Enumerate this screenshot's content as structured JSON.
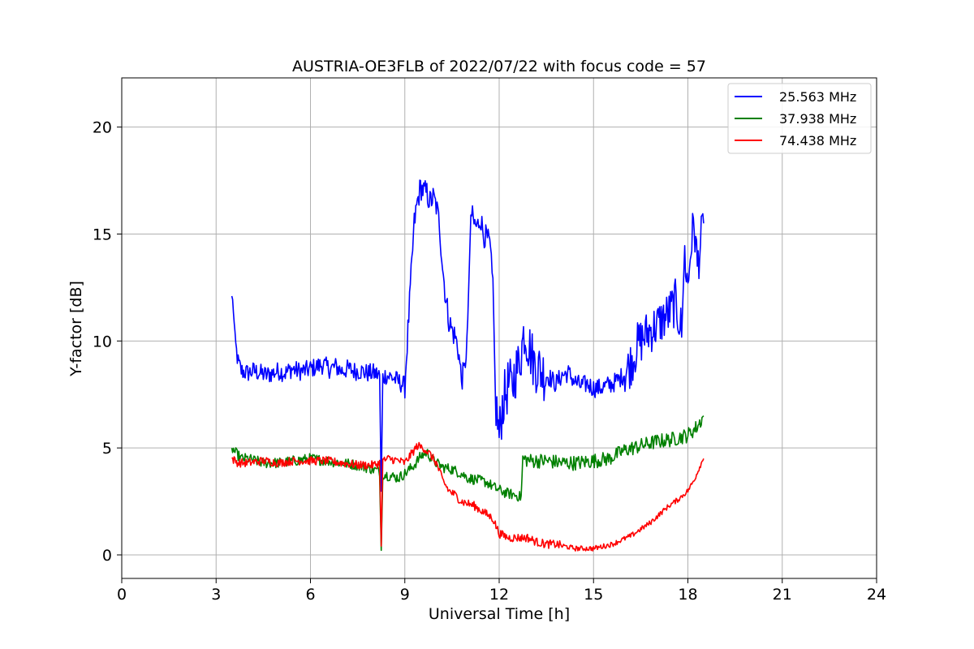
{
  "chart_data": {
    "type": "line",
    "title": "AUSTRIA-OE3FLB of 2022/07/22 with focus code = 57",
    "xlabel": "Universal Time [h]",
    "ylabel": "Y-factor [dB]",
    "xlim": [
      0,
      24
    ],
    "ylim": [
      -1.1,
      22.3
    ],
    "xticks": [
      0,
      3,
      6,
      9,
      12,
      15,
      18,
      21,
      24
    ],
    "yticks": [
      0,
      5,
      10,
      15,
      20
    ],
    "grid": true,
    "legend_position": "top-right",
    "series": [
      {
        "name": "25.563 MHz",
        "color": "#0000ff",
        "x": [
          3.5,
          3.55,
          3.6,
          3.7,
          3.8,
          4.0,
          4.2,
          4.4,
          4.6,
          4.8,
          5.0,
          5.2,
          5.4,
          5.6,
          5.8,
          6.0,
          6.2,
          6.4,
          6.6,
          6.8,
          7.0,
          7.2,
          7.4,
          7.6,
          7.8,
          8.0,
          8.2,
          8.25,
          8.3,
          8.4,
          8.6,
          8.8,
          9.0,
          9.1,
          9.2,
          9.3,
          9.4,
          9.5,
          9.6,
          9.7,
          9.8,
          9.9,
          10.0,
          10.1,
          10.2,
          10.3,
          10.4,
          10.5,
          10.6,
          10.7,
          10.8,
          10.9,
          11.0,
          11.1,
          11.2,
          11.3,
          11.4,
          11.5,
          11.6,
          11.7,
          11.8,
          11.9,
          12.0,
          12.1,
          12.2,
          12.3,
          12.4,
          12.5,
          12.6,
          12.7,
          12.8,
          12.9,
          13.0,
          13.1,
          13.2,
          13.4,
          13.6,
          13.8,
          14.0,
          14.2,
          14.4,
          14.6,
          14.8,
          15.0,
          15.2,
          15.4,
          15.6,
          15.8,
          16.0,
          16.2,
          16.4,
          16.6,
          16.8,
          17.0,
          17.2,
          17.4,
          17.6,
          17.8,
          17.9,
          18.0,
          18.1,
          18.2,
          18.3,
          18.4,
          18.5
        ],
        "y": [
          12.1,
          11.5,
          10.0,
          9.0,
          8.6,
          8.5,
          8.6,
          8.5,
          8.4,
          8.5,
          8.6,
          8.5,
          8.7,
          8.6,
          8.6,
          8.7,
          8.8,
          8.9,
          8.7,
          8.8,
          8.6,
          8.7,
          8.6,
          8.6,
          8.5,
          8.5,
          8.4,
          2.8,
          8.3,
          8.4,
          8.3,
          8.1,
          7.9,
          10.5,
          13.0,
          15.5,
          16.5,
          17.2,
          17.0,
          16.9,
          16.5,
          16.7,
          16.3,
          15.5,
          13.5,
          12.0,
          11.0,
          10.5,
          10.2,
          9.6,
          8.2,
          8.6,
          10.5,
          16.0,
          15.5,
          15.3,
          15.8,
          15.0,
          14.8,
          14.5,
          12.5,
          7.0,
          5.5,
          7.0,
          7.5,
          8.0,
          7.8,
          8.5,
          8.8,
          9.5,
          10.5,
          10.0,
          9.5,
          9.0,
          8.8,
          8.5,
          8.3,
          8.0,
          8.4,
          8.5,
          8.1,
          7.9,
          8.0,
          7.8,
          7.8,
          7.9,
          8.0,
          8.2,
          8.5,
          9.0,
          9.8,
          10.2,
          10.5,
          10.7,
          11.0,
          11.3,
          11.8,
          10.5,
          14.0,
          12.5,
          14.5,
          15.5,
          13.5,
          14.5,
          15.5
        ]
      },
      {
        "name": "37.938 MHz",
        "color": "#008000",
        "x": [
          3.5,
          3.6,
          3.8,
          4.0,
          4.5,
          5.0,
          5.5,
          6.0,
          6.5,
          7.0,
          7.5,
          8.0,
          8.2,
          8.25,
          8.3,
          8.5,
          8.8,
          9.0,
          9.3,
          9.5,
          9.7,
          9.9,
          10.2,
          10.5,
          10.8,
          11.0,
          11.3,
          11.6,
          11.9,
          12.2,
          12.5,
          12.7,
          12.75,
          13.0,
          13.5,
          14.0,
          14.5,
          15.0,
          15.5,
          16.0,
          16.5,
          17.0,
          17.5,
          18.0,
          18.3,
          18.5
        ],
        "y": [
          5.0,
          4.8,
          4.5,
          4.5,
          4.3,
          4.3,
          4.4,
          4.5,
          4.4,
          4.3,
          4.2,
          4.0,
          3.9,
          0.2,
          3.8,
          3.7,
          3.6,
          3.8,
          4.2,
          4.6,
          4.8,
          4.4,
          4.1,
          4.0,
          3.8,
          3.6,
          3.5,
          3.4,
          3.1,
          2.9,
          2.8,
          2.7,
          4.5,
          4.4,
          4.4,
          4.3,
          4.3,
          4.4,
          4.5,
          4.9,
          5.1,
          5.3,
          5.4,
          5.6,
          6.0,
          6.5
        ]
      },
      {
        "name": "74.438 MHz",
        "color": "#ff0000",
        "x": [
          3.5,
          3.7,
          4.0,
          4.5,
          5.0,
          5.5,
          6.0,
          6.5,
          7.0,
          7.5,
          8.0,
          8.2,
          8.25,
          8.3,
          8.5,
          8.8,
          9.0,
          9.2,
          9.4,
          9.6,
          9.8,
          10.0,
          10.2,
          10.4,
          10.6,
          10.8,
          11.0,
          11.2,
          11.4,
          11.6,
          11.8,
          12.0,
          12.3,
          12.6,
          12.9,
          13.2,
          13.5,
          13.8,
          14.1,
          14.4,
          14.7,
          15.0,
          15.3,
          15.6,
          15.9,
          16.2,
          16.5,
          16.8,
          17.1,
          17.4,
          17.7,
          18.0,
          18.2,
          18.4,
          18.5
        ],
        "y": [
          4.5,
          4.3,
          4.3,
          4.4,
          4.3,
          4.4,
          4.4,
          4.4,
          4.3,
          4.2,
          4.2,
          4.3,
          0.6,
          4.4,
          4.5,
          4.4,
          4.3,
          4.7,
          5.1,
          5.0,
          4.7,
          4.3,
          3.5,
          3.0,
          2.8,
          2.5,
          2.4,
          2.3,
          2.1,
          1.9,
          1.7,
          1.0,
          0.8,
          0.8,
          0.8,
          0.6,
          0.5,
          0.5,
          0.4,
          0.3,
          0.3,
          0.3,
          0.4,
          0.5,
          0.7,
          0.9,
          1.2,
          1.5,
          1.9,
          2.3,
          2.6,
          3.0,
          3.5,
          4.2,
          4.5
        ]
      }
    ]
  }
}
